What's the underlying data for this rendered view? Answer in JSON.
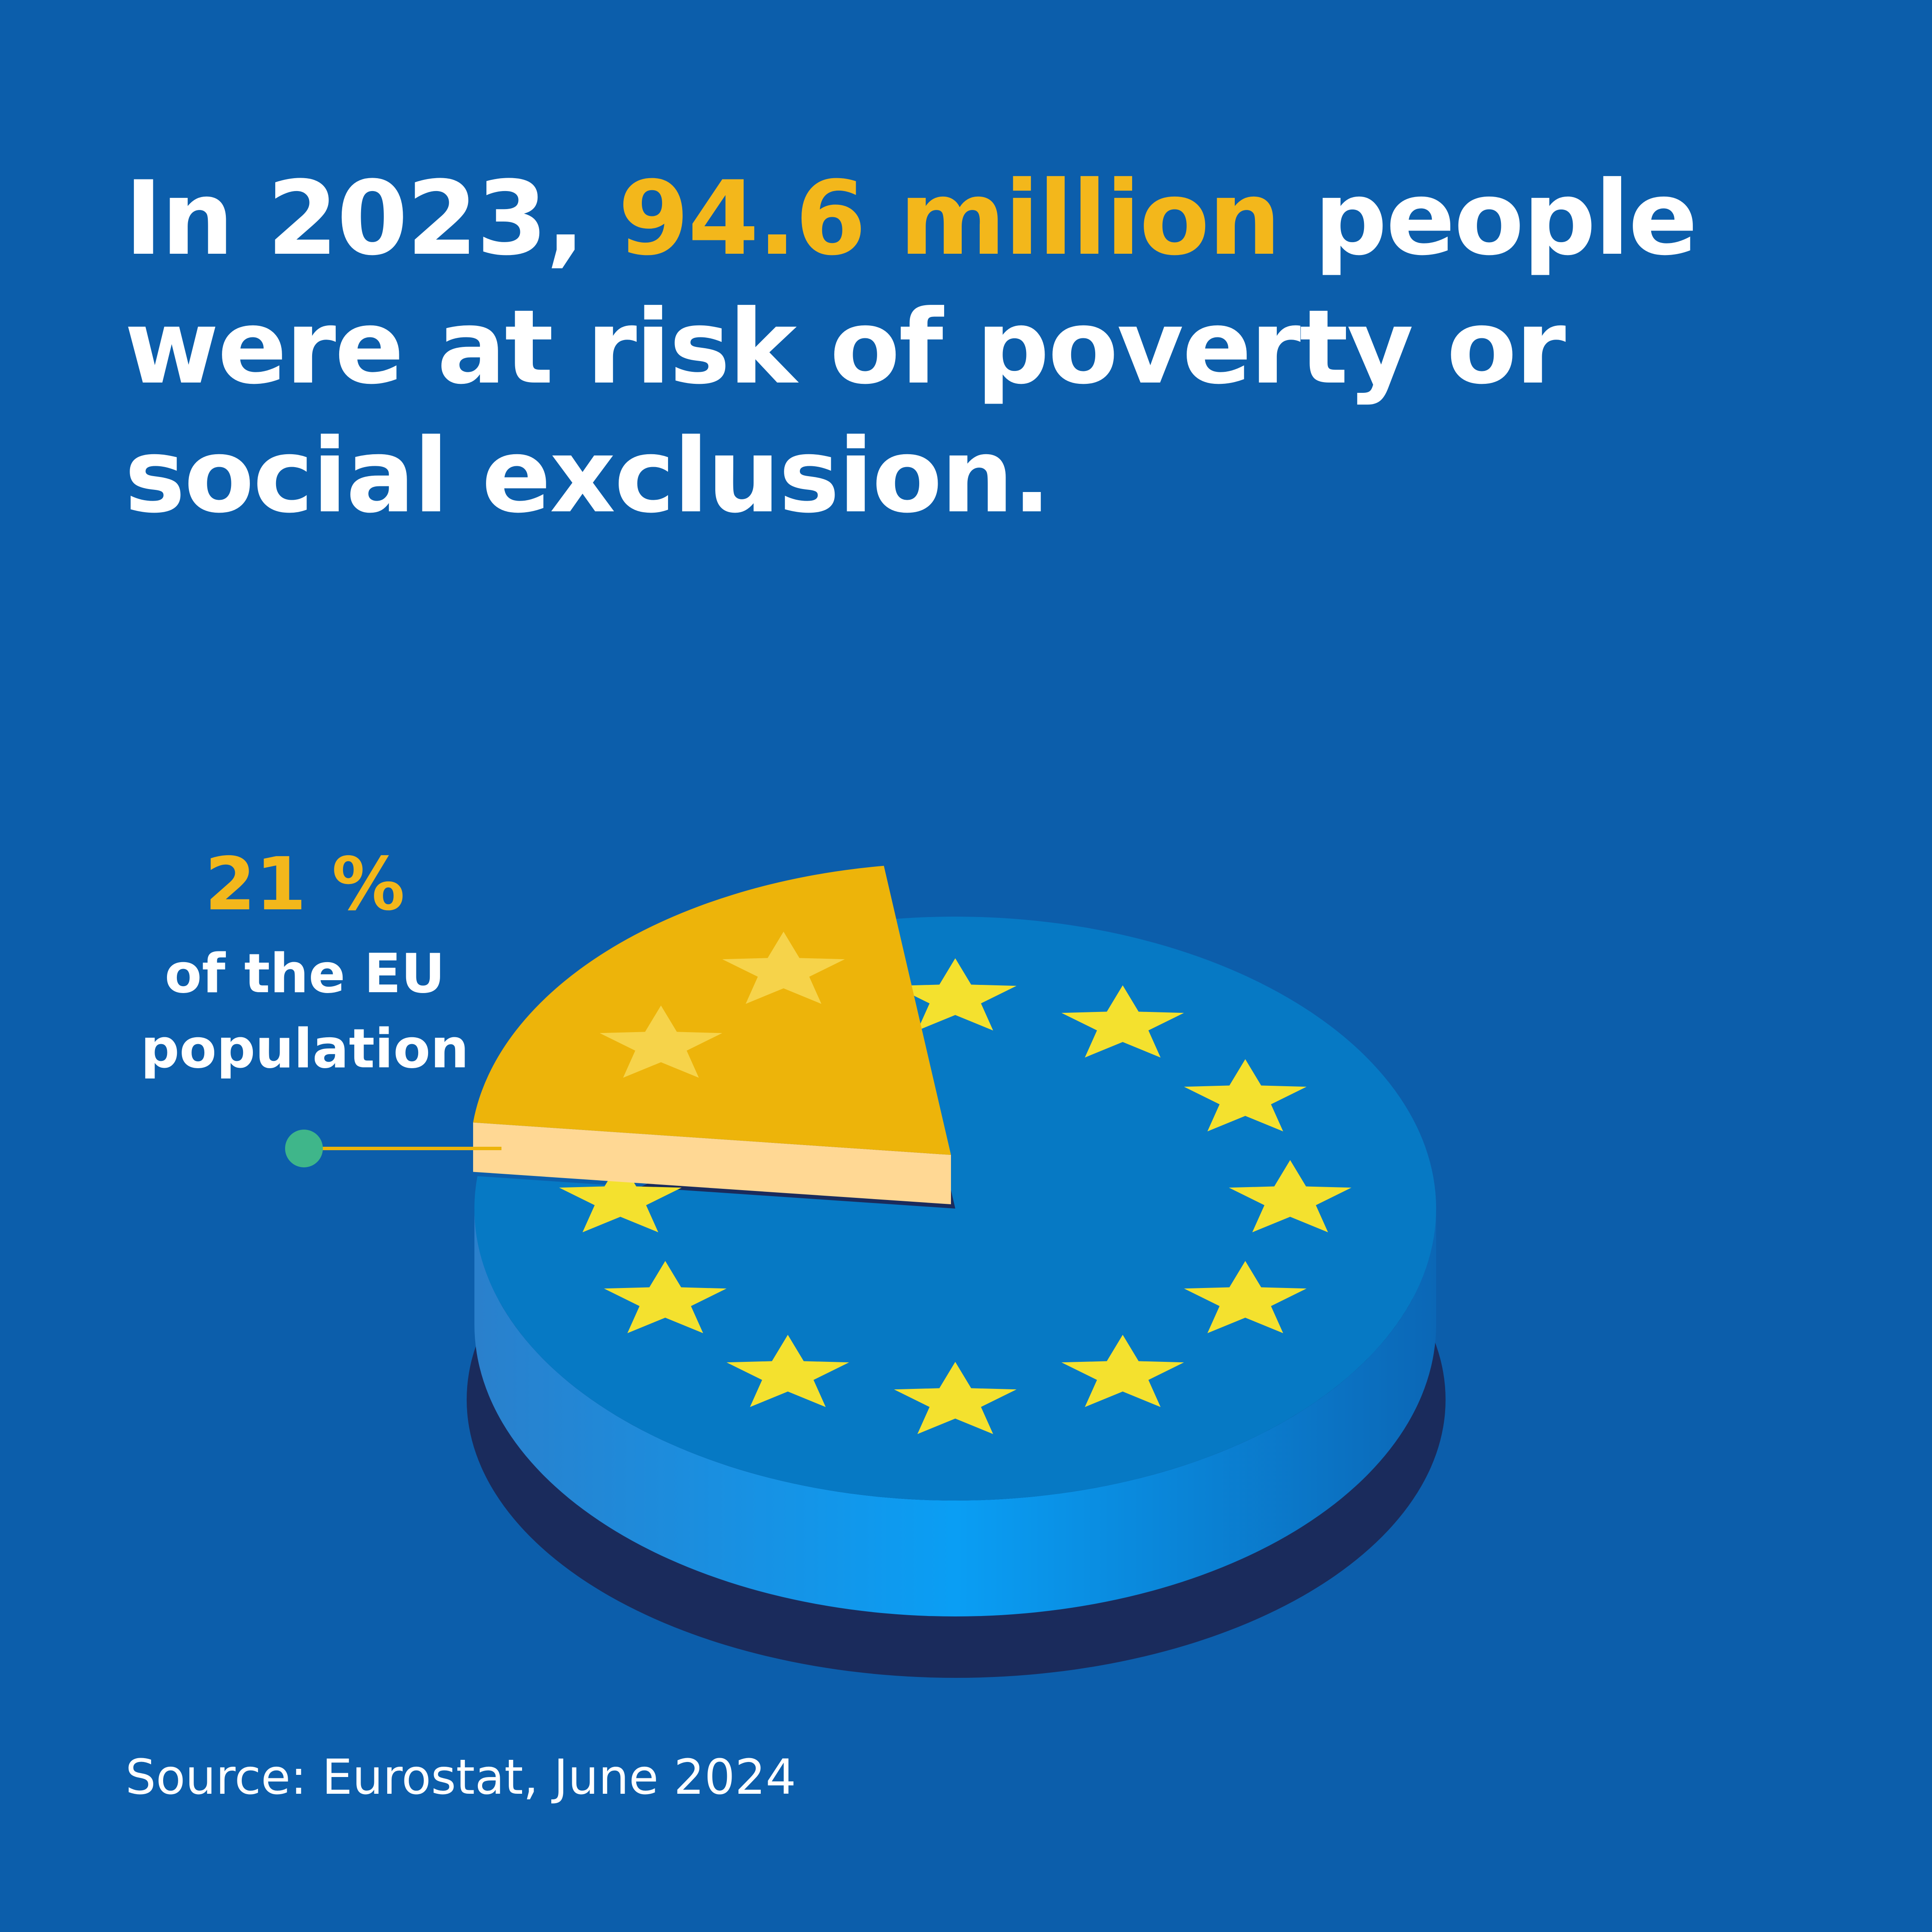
{
  "headline": {
    "before": "In 2023, ",
    "highlight": "94.6 million",
    "after": " people were at risk of poverty or social exclusion."
  },
  "callout": {
    "value": "21 %",
    "text_line1": "of the EU",
    "text_line2": "population"
  },
  "source": "Source: Eurostat, June 2024",
  "colors": {
    "background": "#0c5eab",
    "highlight": "#f3b71b",
    "pie_main": "#0679c4",
    "pie_slice": "#edb40a",
    "pie_slice_side": "#ffd894",
    "shadow": "#1a2b5c",
    "star": "#f4e12e",
    "leader_dot": "#3fb68a"
  },
  "chart_data": {
    "type": "pie",
    "title": "",
    "slices": [
      {
        "label": "21 % of the EU population",
        "value": 21
      },
      {
        "label": "",
        "value": 79
      }
    ],
    "highlighted_slice": 0,
    "style": "3d-pie-eu-flag-stars"
  }
}
